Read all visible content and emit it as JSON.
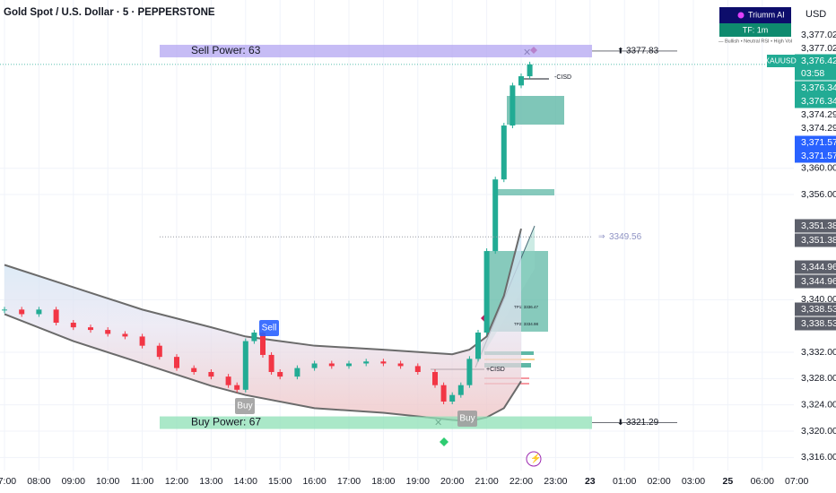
{
  "header": {
    "symbol": "Gold Spot / U.S. Dollar · 5 · PEPPERSTONE",
    "currency": "USD"
  },
  "indicator": {
    "name": "Triumm AI",
    "timeframe": "TF: 1m",
    "status": "— Bullish • Neutral RSI • High Vol"
  },
  "chart_data": {
    "type": "candlestick",
    "x": [
      "07:00",
      "07:30",
      "08:00",
      "08:30",
      "09:00",
      "09:30",
      "10:00",
      "10:30",
      "11:00",
      "11:30",
      "12:00",
      "12:30",
      "13:00",
      "13:30",
      "13:45",
      "14:00",
      "14:15",
      "14:30",
      "14:45",
      "15:00",
      "15:30",
      "16:00",
      "16:30",
      "17:00",
      "17:30",
      "18:00",
      "18:30",
      "19:00",
      "19:30",
      "19:45",
      "20:00",
      "20:15",
      "20:30",
      "20:45",
      "21:00",
      "21:15",
      "21:30",
      "21:45",
      "22:00",
      "22:15"
    ],
    "series": [
      {
        "name": "XAUUSD",
        "color": "#22ab94",
        "down_color": "#f23645",
        "values": [
          3338.5,
          3337.8,
          3338.5,
          3336.5,
          3335.8,
          3335.4,
          3334.8,
          3334.4,
          3333.0,
          3331.3,
          3329.6,
          3329.0,
          3328.3,
          3327.0,
          3326.3,
          3333.7,
          3335.0,
          3331.6,
          3329.0,
          3328.3,
          3329.6,
          3330.3,
          3329.9,
          3330.3,
          3330.6,
          3330.3,
          3329.9,
          3329.0,
          3327.0,
          3324.5,
          3325.5,
          3327.0,
          3331.0,
          3335.0,
          3347.4,
          3358.3,
          3366.5,
          3372.6,
          3374.0,
          3375.8
        ]
      }
    ],
    "bands": {
      "x": [
        "07:00",
        "09:00",
        "11:00",
        "13:00",
        "14:00",
        "16:00",
        "18:00",
        "20:00",
        "20:30",
        "21:00",
        "21:30",
        "22:00"
      ],
      "upper": [
        3345.3,
        3341.9,
        3338.5,
        3335.8,
        3334.4,
        3333.0,
        3332.4,
        3331.7,
        3332.4,
        3334.4,
        3340.6,
        3350.8
      ],
      "lower": [
        3337.8,
        3333.7,
        3330.3,
        3326.9,
        3325.5,
        3323.5,
        3322.8,
        3321.7,
        3321.5,
        3322.1,
        3323.5,
        3327.6
      ]
    },
    "ylim": [
      3314,
      3385.6
    ],
    "yticks": [
      {
        "value": 3316,
        "label": "3,316.00"
      },
      {
        "value": 3320,
        "label": "3,320.00"
      },
      {
        "value": 3324,
        "label": "3,324.00"
      },
      {
        "value": 3328,
        "label": "3,328.00"
      },
      {
        "value": 3332,
        "label": "3,332.00"
      },
      {
        "value": 3340,
        "label": "3,340.00"
      },
      {
        "value": 3356,
        "label": "3,356.00"
      },
      {
        "value": 3360,
        "label": "3,360.00"
      }
    ],
    "xticks": [
      "07:00",
      "08:00",
      "09:00",
      "10:00",
      "11:00",
      "12:00",
      "13:00",
      "14:00",
      "15:00",
      "16:00",
      "17:00",
      "18:00",
      "19:00",
      "20:00",
      "21:00",
      "22:00",
      "23:00",
      "23",
      "01:00",
      "02:00",
      "03:00",
      "25",
      "06:00",
      "07:00"
    ],
    "grid": true,
    "sell_power": {
      "label": "Sell Power: 63",
      "level": 3377.83
    },
    "buy_power": {
      "label": "Buy Power: 67",
      "level": 3321.29
    },
    "target": {
      "level": 3349.56
    },
    "signals": [
      "Sell",
      "Buy",
      "Buy"
    ],
    "annotations": [
      "-CISD",
      "+CISD",
      "TP1: 3336.47",
      "TP2: 3334.98"
    ],
    "price_badges": [
      "3,377.02",
      "3,377.02",
      "3,376.42",
      "03:58",
      "3,376.34",
      "3,376.34",
      "3,374.29",
      "3,374.29",
      "3,371.57",
      "3,371.57",
      "3,351.38",
      "3,351.38",
      "3,344.96",
      "3,344.96",
      "3,338.53",
      "3,338.53"
    ]
  }
}
